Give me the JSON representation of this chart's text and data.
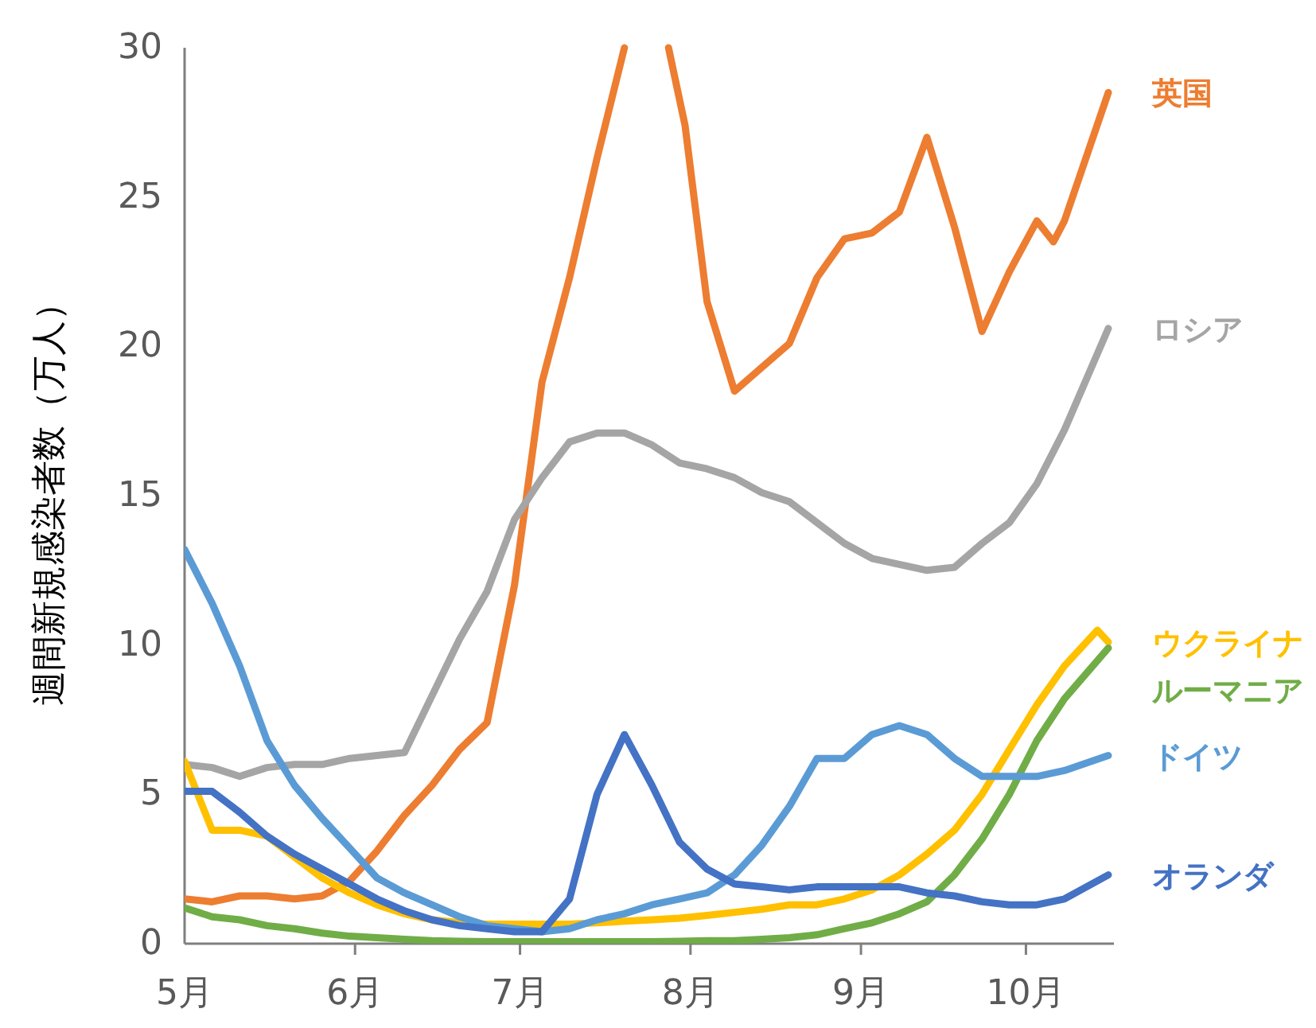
{
  "chart_data": {
    "type": "line",
    "ylabel": "週間新規感染者数（万人）",
    "x": [
      "--05-01",
      "--05-06",
      "--05-11",
      "--05-16",
      "--05-21",
      "--05-26",
      "--05-31",
      "--06-05",
      "--06-10",
      "--06-15",
      "--06-20",
      "--06-25",
      "--06-30",
      "--07-05",
      "--07-10",
      "--07-15",
      "--07-20",
      "--07-25",
      "--07-30",
      "--08-04",
      "--08-09",
      "--08-14",
      "--08-19",
      "--08-24",
      "--08-29",
      "--09-03",
      "--09-08",
      "--09-13",
      "--09-18",
      "--09-23",
      "--09-28",
      "--10-03",
      "--10-08",
      "--10-16"
    ],
    "xlim": [
      "--05-01",
      "--10-17"
    ],
    "xticks": [
      {
        "value": "--05-01",
        "label": "5月"
      },
      {
        "value": "--06-01",
        "label": "6月"
      },
      {
        "value": "--07-01",
        "label": "7月"
      },
      {
        "value": "--08-01",
        "label": "8月"
      },
      {
        "value": "--09-01",
        "label": "9月"
      },
      {
        "value": "--10-01",
        "label": "10月"
      }
    ],
    "ylim": [
      0,
      30
    ],
    "yticks": [
      0,
      5,
      10,
      15,
      20,
      25,
      30
    ],
    "series": [
      {
        "name": "英国",
        "color": "#ed7d31",
        "x": [
          "--05-01",
          "--05-06",
          "--05-11",
          "--05-16",
          "--05-21",
          "--05-26",
          "--05-31",
          "--06-05",
          "--06-10",
          "--06-15",
          "--06-20",
          "--06-25",
          "--06-30",
          "--07-05",
          "--07-10",
          "--07-15",
          "--07-20",
          "--07-25",
          "--07-28",
          "--07-31",
          "--08-04",
          "--08-09",
          "--08-14",
          "--08-19",
          "--08-24",
          "--08-29",
          "--09-03",
          "--09-08",
          "--09-13",
          "--09-18",
          "--09-23",
          "--09-28",
          "--10-03",
          "--10-06",
          "--10-08",
          "--10-16"
        ],
        "values": [
          1.5,
          1.4,
          1.6,
          1.6,
          1.5,
          1.6,
          2.1,
          3.1,
          4.3,
          5.3,
          6.5,
          7.4,
          12,
          18.8,
          22.3,
          26.3,
          30,
          null,
          30,
          27.4,
          21.5,
          18.5,
          19.3,
          20.1,
          22.3,
          23.6,
          23.8,
          24.5,
          27,
          24,
          20.5,
          22.5,
          24.2,
          23.5,
          24.2,
          28.5
        ]
      },
      {
        "name": "ロシア",
        "color": "#a5a5a5",
        "values": [
          6.0,
          5.9,
          5.6,
          5.9,
          6.0,
          6.0,
          6.2,
          6.3,
          6.4,
          8.3,
          10.2,
          11.8,
          14.2,
          15.6,
          16.8,
          17.1,
          17.1,
          16.7,
          16.1,
          15.9,
          15.6,
          15.1,
          14.8,
          14.1,
          13.4,
          12.9,
          12.7,
          12.5,
          12.6,
          13.4,
          14.1,
          15.4,
          17.2,
          20.6
        ]
      },
      {
        "name": "ウクライナ",
        "color": "#ffc000",
        "x": [
          "--05-01",
          "--05-06",
          "--05-11",
          "--05-16",
          "--05-21",
          "--05-26",
          "--05-31",
          "--06-05",
          "--06-10",
          "--06-15",
          "--06-20",
          "--06-25",
          "--06-30",
          "--07-05",
          "--07-10",
          "--07-15",
          "--07-20",
          "--07-25",
          "--07-30",
          "--08-04",
          "--08-09",
          "--08-14",
          "--08-19",
          "--08-24",
          "--08-29",
          "--09-03",
          "--09-08",
          "--09-13",
          "--09-18",
          "--09-23",
          "--09-28",
          "--10-03",
          "--10-08",
          "--10-14",
          "--10-16"
        ],
        "values": [
          6.1,
          3.8,
          3.8,
          3.6,
          2.9,
          2.2,
          1.7,
          1.3,
          1.0,
          0.8,
          0.7,
          0.65,
          0.65,
          0.65,
          0.65,
          0.7,
          0.75,
          0.8,
          0.85,
          0.95,
          1.05,
          1.15,
          1.3,
          1.3,
          1.5,
          1.8,
          2.3,
          3.0,
          3.8,
          5.0,
          6.5,
          8.0,
          9.3,
          10.5,
          10.1
        ]
      },
      {
        "name": "ルーマニア",
        "color": "#70ad47",
        "values": [
          1.2,
          0.9,
          0.8,
          0.6,
          0.5,
          0.35,
          0.25,
          0.2,
          0.15,
          0.1,
          0.08,
          0.07,
          0.07,
          0.07,
          0.07,
          0.07,
          0.07,
          0.07,
          0.08,
          0.1,
          0.1,
          0.15,
          0.2,
          0.3,
          0.5,
          0.7,
          1.0,
          1.4,
          2.3,
          3.5,
          5.0,
          6.8,
          8.2,
          9.9
        ]
      },
      {
        "name": "ドイツ",
        "color": "#5b9bd5",
        "values": [
          13.2,
          11.4,
          9.3,
          6.8,
          5.3,
          4.2,
          3.2,
          2.2,
          1.7,
          1.3,
          0.9,
          0.6,
          0.5,
          0.4,
          0.5,
          0.8,
          1.0,
          1.3,
          1.5,
          1.7,
          2.3,
          3.3,
          4.6,
          6.2,
          6.2,
          7.0,
          7.3,
          7.0,
          6.2,
          5.6,
          5.6,
          5.6,
          5.8,
          6.3
        ]
      },
      {
        "name": "オランダ",
        "color": "#4472c4",
        "values": [
          5.1,
          5.1,
          4.4,
          3.6,
          3.0,
          2.5,
          2.0,
          1.5,
          1.1,
          0.8,
          0.6,
          0.5,
          0.4,
          0.4,
          1.5,
          5.0,
          7.0,
          5.3,
          3.4,
          2.5,
          2.0,
          1.9,
          1.8,
          1.9,
          1.9,
          1.9,
          1.9,
          1.7,
          1.6,
          1.4,
          1.3,
          1.3,
          1.5,
          2.3
        ]
      }
    ]
  }
}
